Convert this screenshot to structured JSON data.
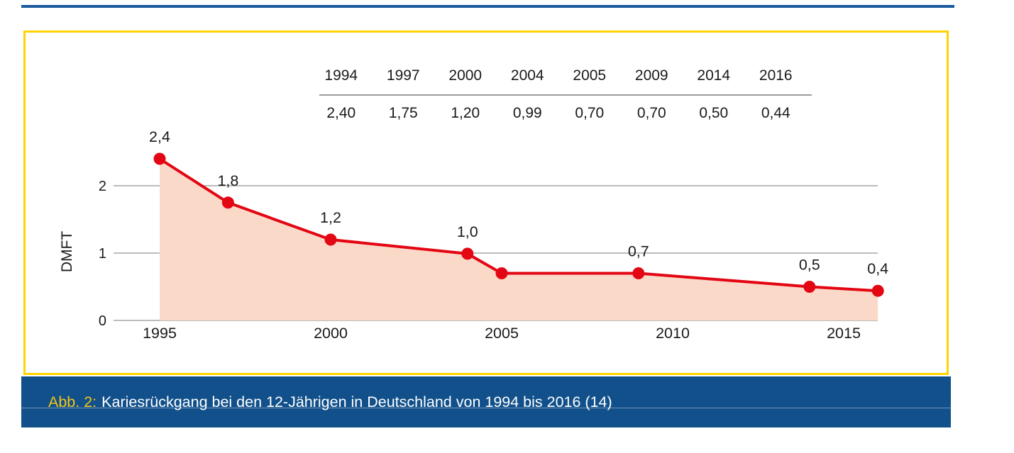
{
  "colors": {
    "accent_yellow": "#FFD400",
    "caption_blue": "#11508A",
    "top_rule_blue": "#1A5A9C",
    "caption_prefix_gold": "#F5C617",
    "line_red": "#E30613",
    "area_fill": "#FBD9C9",
    "grid_gray": "#A6A6A6",
    "table_rule_gray": "#9B9B9B",
    "text_dark": "#1A1A1A"
  },
  "figure": {
    "caption": {
      "prefix": "Abb. 2:",
      "text": "Kariesrückgang bei den 12-Jährigen in Deutschland von 1994 bis 2016 (14)"
    }
  },
  "chart_data": {
    "type": "area",
    "title": "",
    "xlabel": "",
    "ylabel": "DMFT",
    "xlim": [
      1994,
      2016
    ],
    "ylim": [
      0,
      2.6
    ],
    "grid": "horizontal",
    "legend": "none",
    "x_ticks": [
      "1995",
      "2000",
      "2005",
      "2010",
      "2015"
    ],
    "y_ticks": [
      "0",
      "1",
      "2"
    ],
    "series": [
      {
        "name": "DMFT",
        "points": [
          {
            "year": 1994,
            "value": 2.4,
            "label": "2,4",
            "plot_year": 1995
          },
          {
            "year": 1997,
            "value": 1.75,
            "label": "1,8"
          },
          {
            "year": 2000,
            "value": 1.2,
            "label": "1,2"
          },
          {
            "year": 2004,
            "value": 0.99,
            "label": "1,0"
          },
          {
            "year": 2005,
            "value": 0.7,
            "label": ""
          },
          {
            "year": 2009,
            "value": 0.7,
            "label": "0,7"
          },
          {
            "year": 2014,
            "value": 0.5,
            "label": "0,5"
          },
          {
            "year": 2016,
            "value": 0.44,
            "label": "0,4"
          }
        ]
      }
    ],
    "data_table": {
      "headers": [
        "1994",
        "1997",
        "2000",
        "2004",
        "2005",
        "2009",
        "2014",
        "2016"
      ],
      "values": [
        "2,40",
        "1,75",
        "1,20",
        "0,99",
        "0,70",
        "0,70",
        "0,50",
        "0,44"
      ]
    }
  }
}
